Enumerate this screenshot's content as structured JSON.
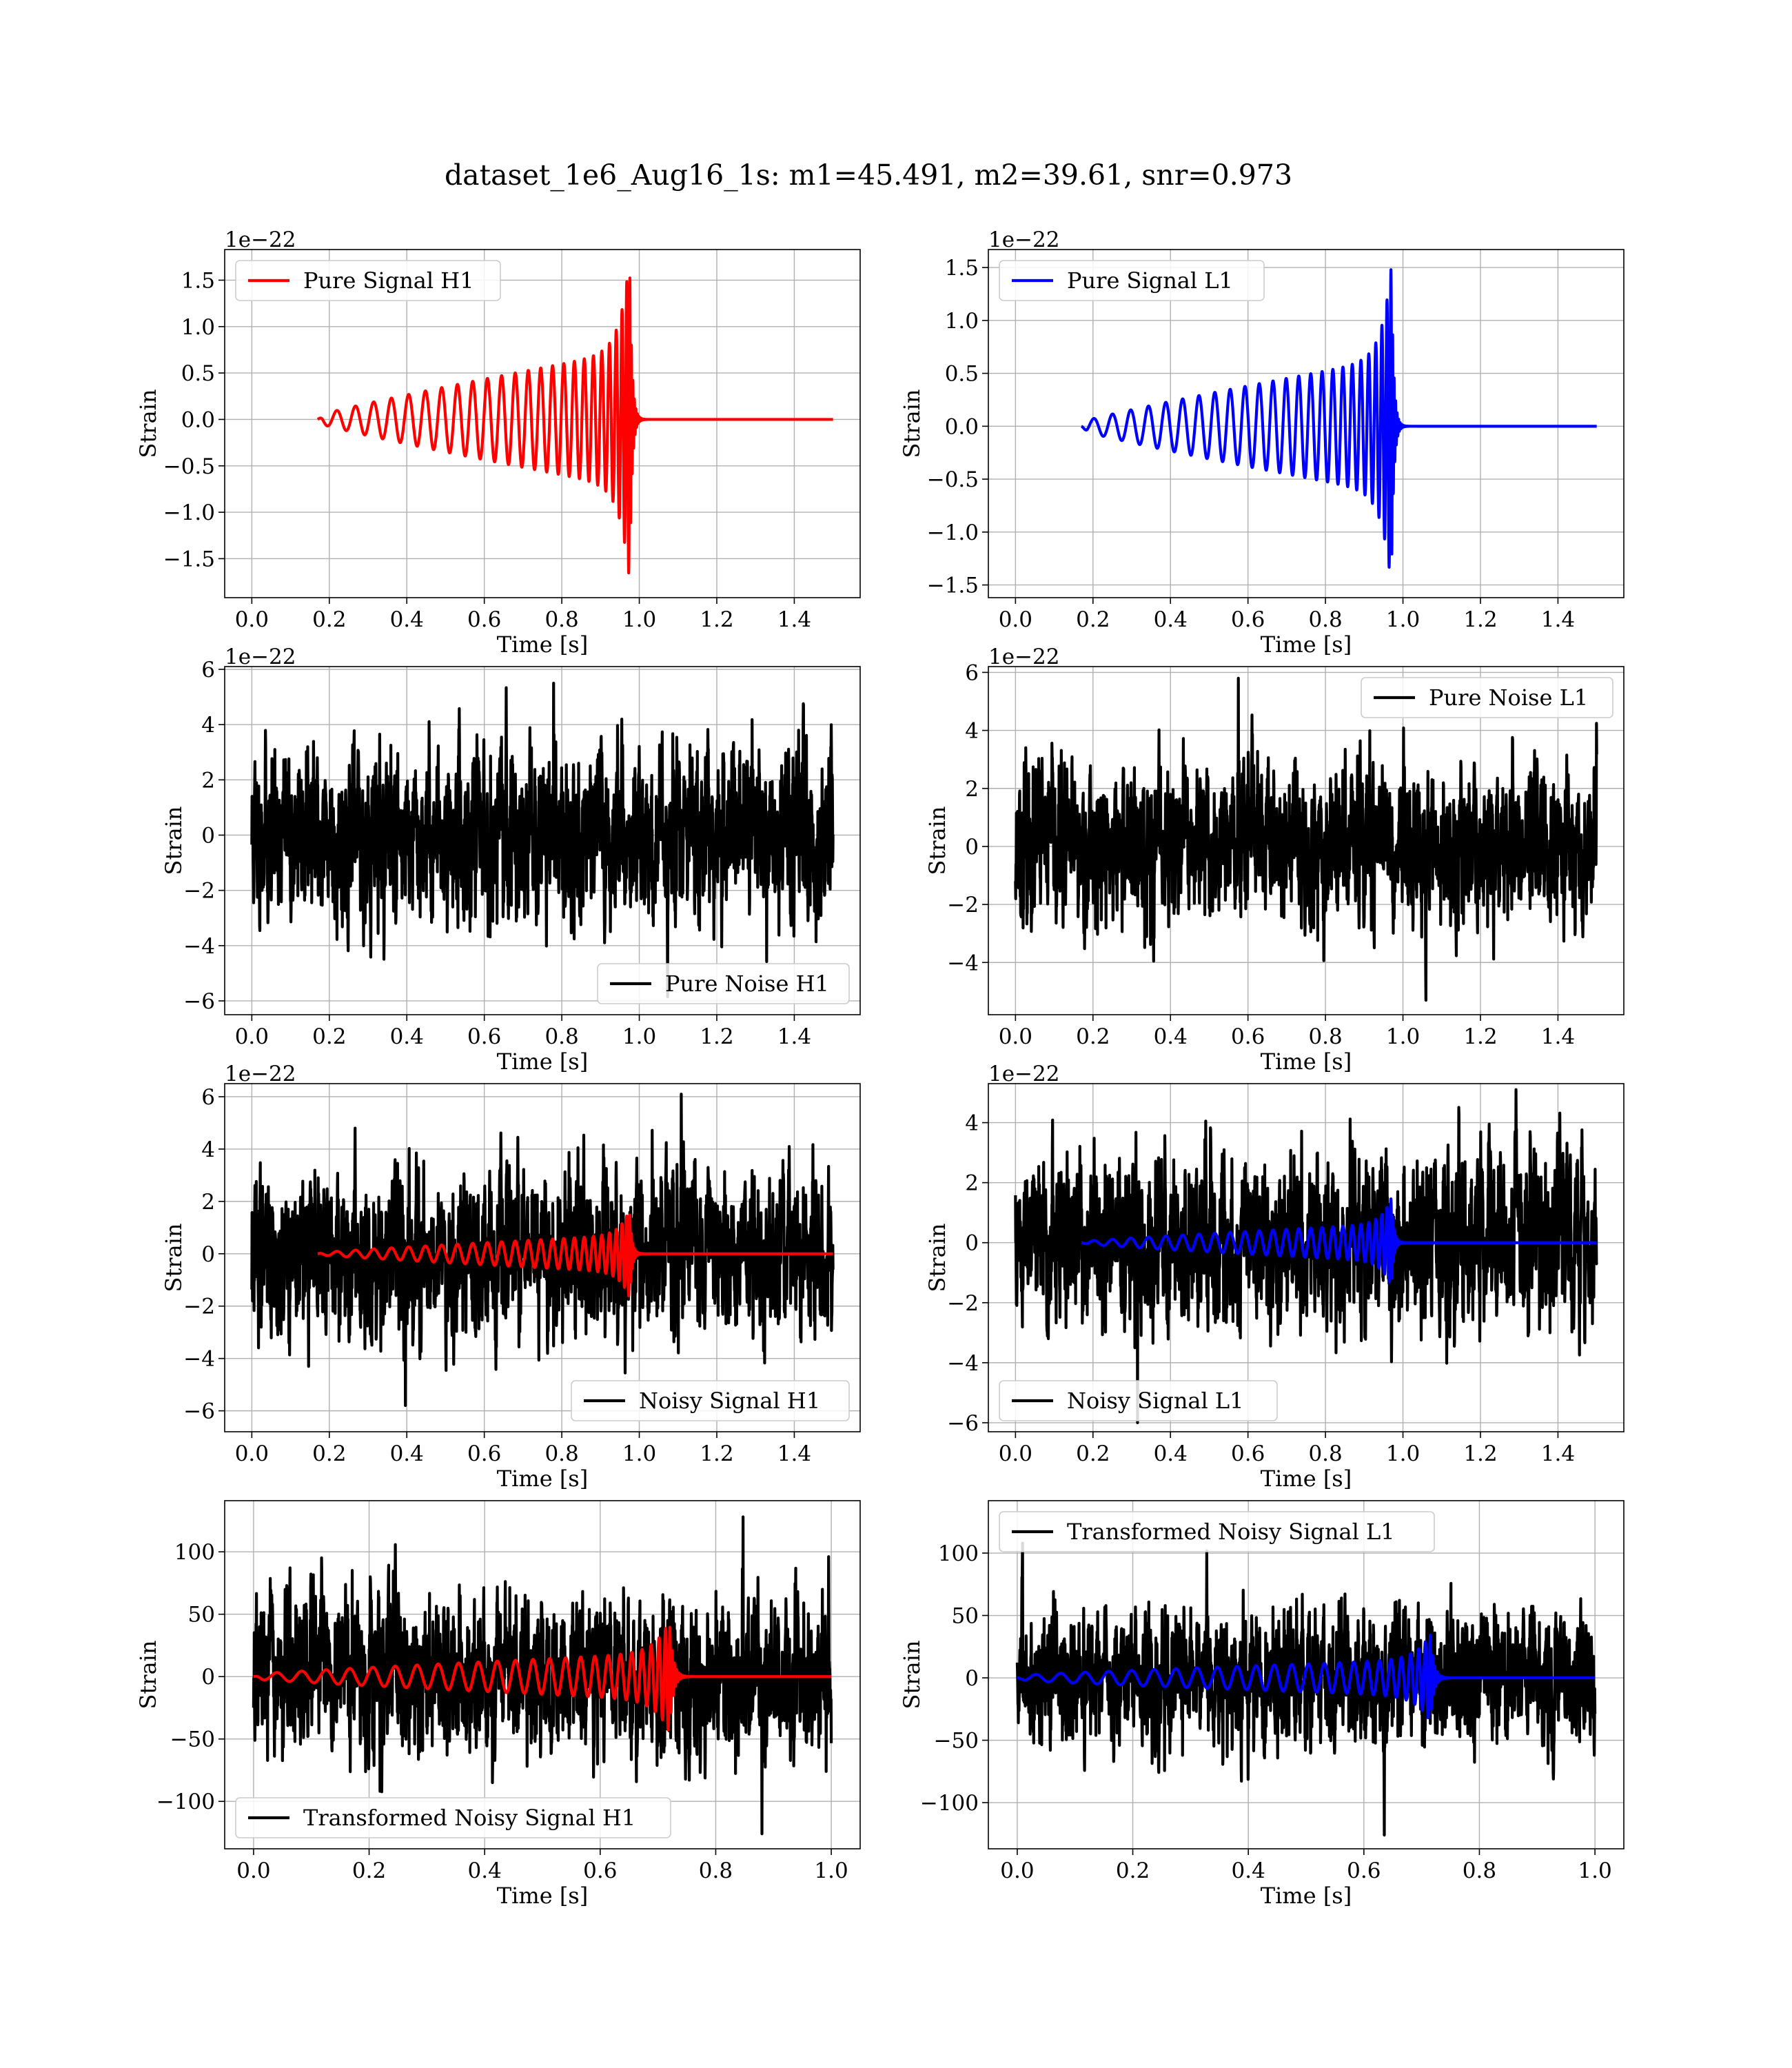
{
  "figure": {
    "title": "dataset_1e6_Aug16_1s: m1=45.491, m2=39.61, snr=0.973"
  },
  "colors": {
    "h1": "#ff0000",
    "l1": "#0000ff",
    "noise": "#000000"
  },
  "chart_data": [
    {
      "type": "line",
      "id": "pure-signal-h1",
      "xlabel": "Time [s]",
      "ylabel": "Strain",
      "offset_text": "1e−22",
      "xlim": [
        -0.07,
        1.57
      ],
      "ylim": [
        -1.92,
        1.83
      ],
      "xticks": [
        0.0,
        0.2,
        0.4,
        0.6,
        0.8,
        1.0,
        1.2,
        1.4
      ],
      "xtick_labels": [
        "0.0",
        "0.2",
        "0.4",
        "0.6",
        "0.8",
        "1.0",
        "1.2",
        "1.4"
      ],
      "yticks": [
        -1.5,
        -1.0,
        -0.5,
        0.0,
        0.5,
        1.0,
        1.5
      ],
      "ytick_labels": [
        "−1.5",
        "−1.0",
        "−0.5",
        "0.0",
        "0.5",
        "1.0",
        "1.5"
      ],
      "legend": "upper-left",
      "grid": true,
      "series": [
        {
          "name": "Pure Signal H1",
          "color": "#ff0000",
          "kind": "chirp",
          "t_start": 0.17,
          "t_merge": 0.975,
          "t_end": 1.5,
          "peak": 1.75,
          "a_start": 0.04,
          "phase": 0
        }
      ]
    },
    {
      "type": "line",
      "id": "pure-signal-l1",
      "xlabel": "Time [s]",
      "ylabel": "Strain",
      "offset_text": "1e−22",
      "xlim": [
        -0.07,
        1.57
      ],
      "ylim": [
        -1.62,
        1.67
      ],
      "xticks": [
        0.0,
        0.2,
        0.4,
        0.6,
        0.8,
        1.0,
        1.2,
        1.4
      ],
      "xtick_labels": [
        "0.0",
        "0.2",
        "0.4",
        "0.6",
        "0.8",
        "1.0",
        "1.2",
        "1.4"
      ],
      "yticks": [
        -1.5,
        -1.0,
        -0.5,
        0.0,
        0.5,
        1.0,
        1.5
      ],
      "ytick_labels": [
        "−1.5",
        "−1.0",
        "−0.5",
        "0.0",
        "0.5",
        "1.0",
        "1.5"
      ],
      "legend": "upper-left",
      "grid": true,
      "series": [
        {
          "name": "Pure Signal L1",
          "color": "#0000ff",
          "kind": "chirp",
          "t_start": 0.17,
          "t_merge": 0.97,
          "t_end": 1.5,
          "peak": 1.52,
          "a_start": 0.04,
          "phase": 2.2
        }
      ]
    },
    {
      "type": "line",
      "id": "pure-noise-h1",
      "xlabel": "Time [s]",
      "ylabel": "Strain",
      "offset_text": "1e−22",
      "xlim": [
        -0.07,
        1.57
      ],
      "ylim": [
        -6.5,
        6.1
      ],
      "xticks": [
        0.0,
        0.2,
        0.4,
        0.6,
        0.8,
        1.0,
        1.2,
        1.4
      ],
      "xtick_labels": [
        "0.0",
        "0.2",
        "0.4",
        "0.6",
        "0.8",
        "1.0",
        "1.2",
        "1.4"
      ],
      "yticks": [
        -6,
        -4,
        -2,
        0,
        2,
        4,
        6
      ],
      "ytick_labels": [
        "−6",
        "−4",
        "−2",
        "0",
        "2",
        "4",
        "6"
      ],
      "legend": "lower-right",
      "grid": true,
      "series": [
        {
          "name": "Pure Noise H1",
          "color": "#000000",
          "kind": "noise",
          "t_start": 0.0,
          "t_end": 1.5,
          "sigma": 1.6,
          "max": 5.5,
          "min": -5.85,
          "seed": 11
        }
      ]
    },
    {
      "type": "line",
      "id": "pure-noise-l1",
      "xlabel": "Time [s]",
      "ylabel": "Strain",
      "offset_text": "1e−22",
      "xlim": [
        -0.07,
        1.57
      ],
      "ylim": [
        -5.8,
        6.2
      ],
      "xticks": [
        0.0,
        0.2,
        0.4,
        0.6,
        0.8,
        1.0,
        1.2,
        1.4
      ],
      "xtick_labels": [
        "0.0",
        "0.2",
        "0.4",
        "0.6",
        "0.8",
        "1.0",
        "1.2",
        "1.4"
      ],
      "yticks": [
        -4,
        -2,
        0,
        2,
        4,
        6
      ],
      "ytick_labels": [
        "−4",
        "−2",
        "0",
        "2",
        "4",
        "6"
      ],
      "legend": "upper-right",
      "grid": true,
      "series": [
        {
          "name": "Pure Noise L1",
          "color": "#000000",
          "kind": "noise",
          "t_start": 0.0,
          "t_end": 1.5,
          "sigma": 1.4,
          "max": 5.8,
          "min": -5.3,
          "seed": 23
        }
      ]
    },
    {
      "type": "line",
      "id": "noisy-signal-h1",
      "xlabel": "Time [s]",
      "ylabel": "Strain",
      "offset_text": "1e−22",
      "xlim": [
        -0.07,
        1.57
      ],
      "ylim": [
        -6.8,
        6.5
      ],
      "xticks": [
        0.0,
        0.2,
        0.4,
        0.6,
        0.8,
        1.0,
        1.2,
        1.4
      ],
      "xtick_labels": [
        "0.0",
        "0.2",
        "0.4",
        "0.6",
        "0.8",
        "1.0",
        "1.2",
        "1.4"
      ],
      "yticks": [
        -6,
        -4,
        -2,
        0,
        2,
        4,
        6
      ],
      "ytick_labels": [
        "−6",
        "−4",
        "−2",
        "0",
        "2",
        "4",
        "6"
      ],
      "legend": "lower-right",
      "grid": true,
      "series": [
        {
          "name": "Noisy Signal H1",
          "color": "#000000",
          "kind": "noise",
          "t_start": 0.0,
          "t_end": 1.5,
          "sigma": 1.6,
          "max": 6.1,
          "min": -5.8,
          "seed": 37
        },
        {
          "name": "",
          "color": "#ff0000",
          "kind": "chirp",
          "t_start": 0.17,
          "t_merge": 0.975,
          "t_end": 1.5,
          "peak": 1.7,
          "a_start": 0.04,
          "phase": 0
        }
      ]
    },
    {
      "type": "line",
      "id": "noisy-signal-l1",
      "xlabel": "Time [s]",
      "ylabel": "Strain",
      "offset_text": "1e−22",
      "xlim": [
        -0.07,
        1.57
      ],
      "ylim": [
        -6.3,
        5.3
      ],
      "xticks": [
        0.0,
        0.2,
        0.4,
        0.6,
        0.8,
        1.0,
        1.2,
        1.4
      ],
      "xtick_labels": [
        "0.0",
        "0.2",
        "0.4",
        "0.6",
        "0.8",
        "1.0",
        "1.2",
        "1.4"
      ],
      "yticks": [
        -6,
        -4,
        -2,
        0,
        2,
        4
      ],
      "ytick_labels": [
        "−6",
        "−4",
        "−2",
        "0",
        "2",
        "4"
      ],
      "legend": "lower-left",
      "grid": true,
      "series": [
        {
          "name": "Noisy Signal L1",
          "color": "#000000",
          "kind": "noise",
          "t_start": 0.0,
          "t_end": 1.5,
          "sigma": 1.5,
          "max": 5.1,
          "min": -6.0,
          "seed": 51
        },
        {
          "name": "",
          "color": "#0000ff",
          "kind": "chirp",
          "t_start": 0.17,
          "t_merge": 0.97,
          "t_end": 1.5,
          "peak": 1.5,
          "a_start": 0.04,
          "phase": 2.2
        }
      ]
    },
    {
      "type": "line",
      "id": "transformed-noisy-signal-h1",
      "xlabel": "Time [s]",
      "ylabel": "Strain",
      "offset_text": "",
      "xlim": [
        -0.05,
        1.05
      ],
      "ylim": [
        -138,
        141
      ],
      "xticks": [
        0.0,
        0.2,
        0.4,
        0.6,
        0.8,
        1.0
      ],
      "xtick_labels": [
        "0.0",
        "0.2",
        "0.4",
        "0.6",
        "0.8",
        "1.0"
      ],
      "yticks": [
        -100,
        -50,
        0,
        50,
        100
      ],
      "ytick_labels": [
        "−100",
        "−50",
        "0",
        "50",
        "100"
      ],
      "legend": "lower-left",
      "grid": true,
      "series": [
        {
          "name": "Transformed Noisy Signal H1",
          "color": "#000000",
          "kind": "noise",
          "t_start": 0.0,
          "t_end": 1.0,
          "sigma": 32,
          "max": 128,
          "min": -126,
          "seed": 67
        },
        {
          "name": "",
          "color": "#ff0000",
          "kind": "chirp",
          "t_start": 0.0,
          "t_merge": 0.72,
          "t_end": 1.0,
          "peak": 45,
          "a_start": 2,
          "phase": 0.6
        }
      ]
    },
    {
      "type": "line",
      "id": "transformed-noisy-signal-l1",
      "xlabel": "Time [s]",
      "ylabel": "Strain",
      "offset_text": "",
      "xlim": [
        -0.05,
        1.05
      ],
      "ylim": [
        -137,
        142
      ],
      "xticks": [
        0.0,
        0.2,
        0.4,
        0.6,
        0.8,
        1.0
      ],
      "xtick_labels": [
        "0.0",
        "0.2",
        "0.4",
        "0.6",
        "0.8",
        "1.0"
      ],
      "yticks": [
        -100,
        -50,
        0,
        50,
        100
      ],
      "ytick_labels": [
        "−100",
        "−50",
        "0",
        "50",
        "100"
      ],
      "legend": "upper-left",
      "grid": true,
      "series": [
        {
          "name": "Transformed Noisy Signal L1",
          "color": "#000000",
          "kind": "noise",
          "t_start": 0.0,
          "t_end": 1.0,
          "sigma": 28,
          "max": 108,
          "min": -126,
          "seed": 83
        },
        {
          "name": "",
          "color": "#0000ff",
          "kind": "chirp",
          "t_start": 0.0,
          "t_merge": 0.715,
          "t_end": 1.0,
          "peak": 35,
          "a_start": 2,
          "phase": 1.7
        }
      ]
    }
  ]
}
